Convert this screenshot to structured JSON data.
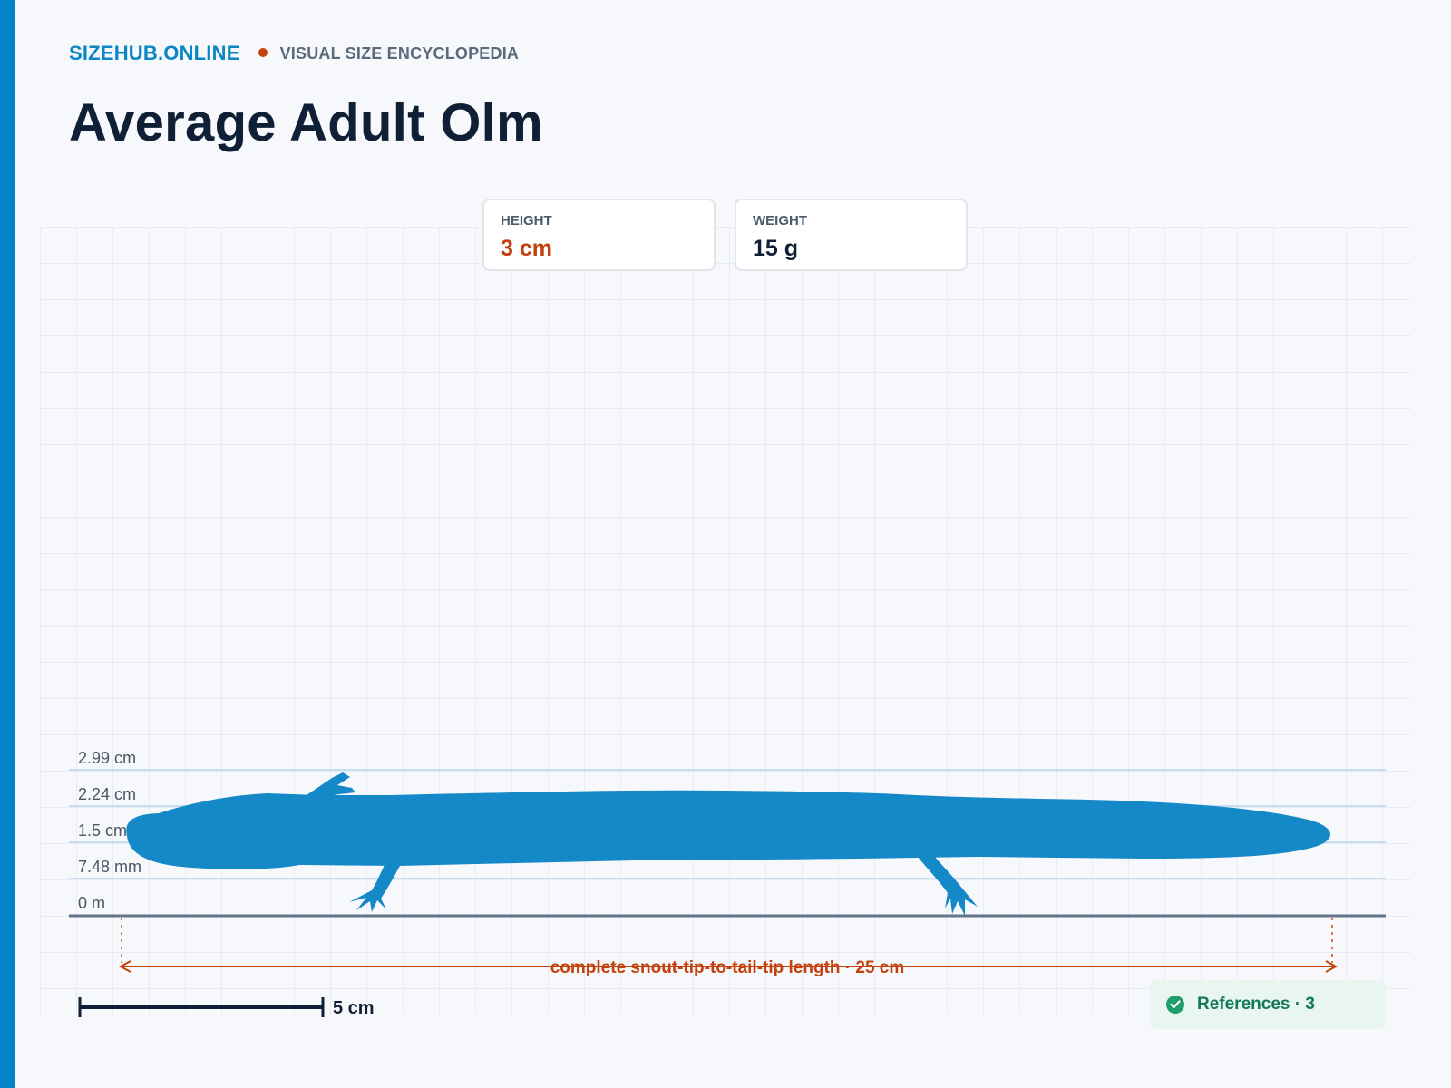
{
  "header": {
    "brand": "SIZEHUB.ONLINE",
    "tagline": "VISUAL SIZE ENCYCLOPEDIA",
    "title": "Average Adult Olm"
  },
  "stats": {
    "height_label": "HEIGHT",
    "height_value": "3 cm",
    "weight_label": "WEIGHT",
    "weight_value": "15 g"
  },
  "axis": {
    "ticks": [
      "2.99 cm",
      "2.24 cm",
      "1.5 cm",
      "7.48 mm",
      "0 m"
    ]
  },
  "dimension": {
    "label": "complete snout-tip-to-tail-tip length · 25 cm"
  },
  "scale_bar": {
    "label": "5 cm"
  },
  "references": {
    "label": "References · 3",
    "icon": "check-circle-icon"
  },
  "colors": {
    "accent": "#0284c7",
    "silhouette": "#1589c8",
    "highlight": "#c2410c",
    "references": "#137a55"
  }
}
